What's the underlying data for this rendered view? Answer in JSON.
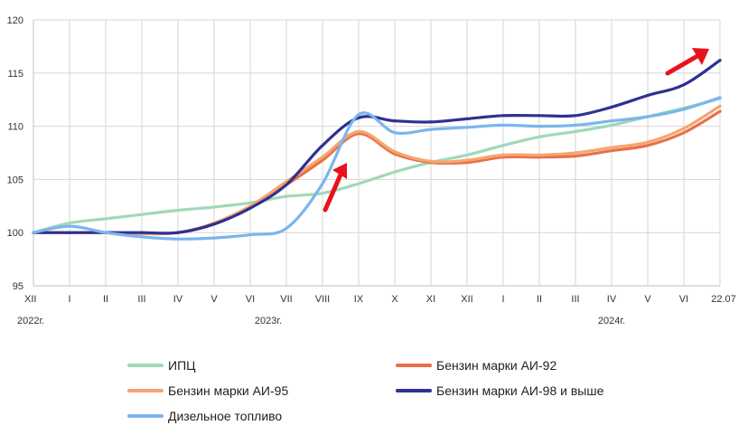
{
  "chart_data": {
    "type": "line",
    "x_ticks": [
      "XII",
      "I",
      "II",
      "III",
      "IV",
      "V",
      "VI",
      "VII",
      "VIII",
      "IX",
      "X",
      "XI",
      "XII",
      "I",
      "II",
      "III",
      "IV",
      "V",
      "VI",
      "22.07"
    ],
    "year_labels": [
      {
        "text": "2022г.",
        "at": 0
      },
      {
        "text": "2023г.",
        "at": 6.5
      },
      {
        "text": "2024г.",
        "at": 16
      }
    ],
    "ylim": [
      95,
      120
    ],
    "y_ticks": [
      95,
      100,
      105,
      110,
      115,
      120
    ],
    "grid": true,
    "legend_position": "bottom",
    "series": [
      {
        "name": "ИПЦ",
        "color": "#9fd9b8",
        "points": [
          [
            0,
            100
          ],
          [
            1,
            100.9
          ],
          [
            2,
            101.3
          ],
          [
            3,
            101.7
          ],
          [
            4,
            102.1
          ],
          [
            5,
            102.4
          ],
          [
            6,
            102.8
          ],
          [
            7,
            103.4
          ],
          [
            8,
            103.7
          ],
          [
            9,
            104.6
          ],
          [
            10,
            105.7
          ],
          [
            11,
            106.6
          ],
          [
            12,
            107.3
          ],
          [
            13,
            108.2
          ],
          [
            14,
            109.0
          ],
          [
            15,
            109.5
          ],
          [
            16,
            110.1
          ],
          [
            17,
            110.9
          ],
          [
            18,
            111.7
          ],
          [
            19,
            112.6
          ]
        ]
      },
      {
        "name": "Бензин марки АИ-92",
        "color": "#e8704a",
        "points": [
          [
            0,
            100
          ],
          [
            1,
            100
          ],
          [
            2,
            100
          ],
          [
            3,
            99.9
          ],
          [
            4,
            100
          ],
          [
            5,
            100.8
          ],
          [
            6,
            102.4
          ],
          [
            7,
            104.5
          ],
          [
            8,
            106.8
          ],
          [
            9,
            109.3
          ],
          [
            10,
            107.4
          ],
          [
            11,
            106.6
          ],
          [
            12,
            106.6
          ],
          [
            13,
            107.1
          ],
          [
            14,
            107.1
          ],
          [
            15,
            107.2
          ],
          [
            16,
            107.7
          ],
          [
            17,
            108.2
          ],
          [
            18,
            109.4
          ],
          [
            19,
            111.4
          ]
        ]
      },
      {
        "name": "Бензин марки АИ-95",
        "color": "#f4a66e",
        "points": [
          [
            0,
            100
          ],
          [
            1,
            100
          ],
          [
            2,
            100
          ],
          [
            3,
            99.9
          ],
          [
            4,
            100
          ],
          [
            5,
            100.9
          ],
          [
            6,
            102.5
          ],
          [
            7,
            104.8
          ],
          [
            8,
            107.1
          ],
          [
            9,
            109.5
          ],
          [
            10,
            107.6
          ],
          [
            11,
            106.7
          ],
          [
            12,
            106.8
          ],
          [
            13,
            107.3
          ],
          [
            14,
            107.3
          ],
          [
            15,
            107.5
          ],
          [
            16,
            108.0
          ],
          [
            17,
            108.5
          ],
          [
            18,
            109.8
          ],
          [
            19,
            111.9
          ]
        ]
      },
      {
        "name": "Бензин марки АИ-98 и  выше",
        "color": "#2e3192",
        "points": [
          [
            0,
            100
          ],
          [
            1,
            100
          ],
          [
            2,
            100
          ],
          [
            3,
            100
          ],
          [
            4,
            100
          ],
          [
            5,
            100.8
          ],
          [
            6,
            102.3
          ],
          [
            7,
            104.5
          ],
          [
            8,
            108.2
          ],
          [
            9,
            110.8
          ],
          [
            10,
            110.5
          ],
          [
            11,
            110.4
          ],
          [
            12,
            110.7
          ],
          [
            13,
            111.0
          ],
          [
            14,
            111.0
          ],
          [
            15,
            111.0
          ],
          [
            16,
            111.8
          ],
          [
            17,
            112.9
          ],
          [
            18,
            113.9
          ],
          [
            19,
            116.2
          ]
        ]
      },
      {
        "name": "Дизельное топливо",
        "color": "#7ab6ec",
        "points": [
          [
            0,
            100
          ],
          [
            1,
            100.6
          ],
          [
            2,
            100
          ],
          [
            3,
            99.6
          ],
          [
            4,
            99.4
          ],
          [
            5,
            99.5
          ],
          [
            6,
            99.8
          ],
          [
            7,
            100.4
          ],
          [
            8,
            104.6
          ],
          [
            9,
            111.1
          ],
          [
            10,
            109.4
          ],
          [
            11,
            109.7
          ],
          [
            12,
            109.9
          ],
          [
            13,
            110.1
          ],
          [
            14,
            110.0
          ],
          [
            15,
            110.1
          ],
          [
            16,
            110.5
          ],
          [
            17,
            110.9
          ],
          [
            18,
            111.6
          ],
          [
            19,
            112.7
          ]
        ]
      }
    ]
  }
}
